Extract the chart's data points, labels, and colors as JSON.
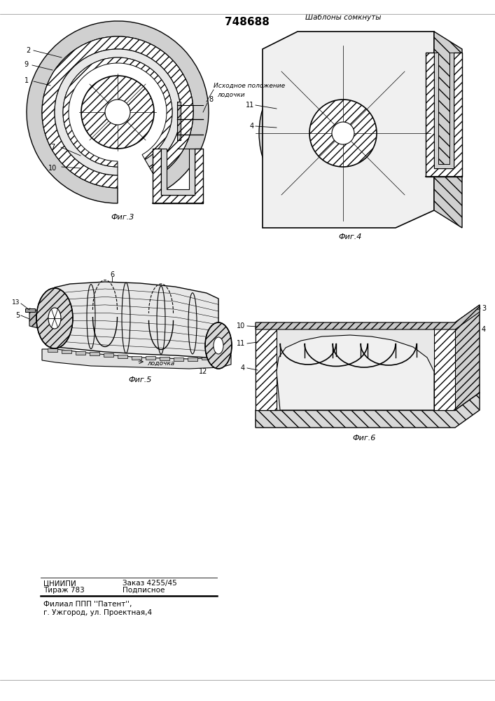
{
  "patent_number": "748688",
  "background_color": "#ffffff",
  "footer": {
    "line1_col1": "ЦНИИПИ",
    "line1_col2": "Заказ 4255/45",
    "line2_col1": "Тираж 783",
    "line2_col2": "Подписное",
    "line3": "Филиал ППП ''Патент'',",
    "line4": "г. Ужгород, ул. Проектная,4"
  },
  "fig3_label": "Фиг.3",
  "fig4_label": "Фиг.4",
  "fig5_label": "Фиг.5",
  "fig6_label": "Фиг.6",
  "annotation_ishodnoe": "Исходное положение\n    лодочки",
  "annotation_shablony": "Шаблоны сомкнуты",
  "annotation_lodka": "лодочка"
}
